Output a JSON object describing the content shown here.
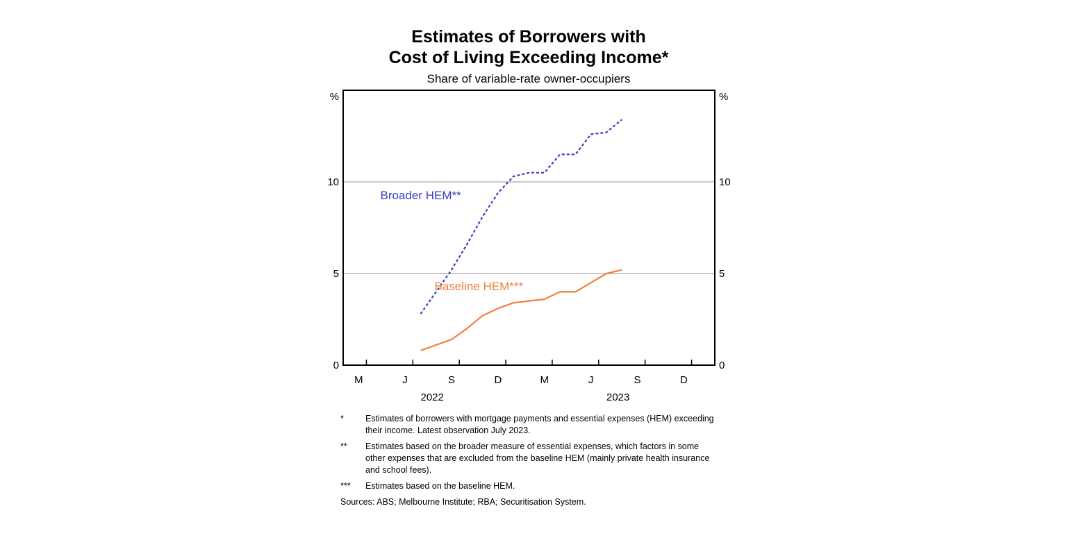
{
  "chart_data": {
    "type": "line",
    "title_lines": [
      "Estimates of Borrowers with",
      "Cost of Living Exceeding Income*"
    ],
    "subtitle": "Share of variable-rate owner-occupiers",
    "yunit_left": "%",
    "yunit_right": "%",
    "ylim": [
      0,
      15
    ],
    "yticks": [
      0,
      5,
      10
    ],
    "grid": true,
    "x_tick_labels": [
      "M",
      "J",
      "S",
      "D",
      "M",
      "J",
      "S",
      "D"
    ],
    "year_labels": [
      {
        "label": "2022",
        "months": [
          7.5,
          8
        ]
      },
      {
        "label": "2023",
        "months": [
          19.5,
          20
        ]
      }
    ],
    "xlim_months": [
      2,
      26
    ],
    "series": [
      {
        "name": "Broader HEM**",
        "color": "#3d3dbf",
        "style": "dashed",
        "x_months": [
          7,
          8,
          9,
          10,
          11,
          12,
          13,
          14,
          15,
          16,
          17,
          18,
          19,
          20
        ],
        "values": [
          2.8,
          4.0,
          5.2,
          6.6,
          8.1,
          9.4,
          10.3,
          10.5,
          10.5,
          11.5,
          11.5,
          12.6,
          12.7,
          13.4
        ]
      },
      {
        "name": "Baseline HEM***",
        "color": "#f07f3c",
        "style": "solid",
        "x_months": [
          7,
          8,
          9,
          10,
          11,
          12,
          13,
          14,
          15,
          16,
          17,
          18,
          19,
          20
        ],
        "values": [
          0.8,
          1.1,
          1.4,
          2.0,
          2.7,
          3.1,
          3.4,
          3.5,
          3.6,
          4.0,
          4.0,
          4.5,
          5.0,
          5.2
        ]
      }
    ]
  },
  "footnotes": [
    {
      "mark": "*",
      "text": "Estimates of borrowers with mortgage payments and essential expenses (HEM) exceeding their income. Latest observation July 2023."
    },
    {
      "mark": "**",
      "text": "Estimates based on the broader measure of essential expenses, which factors in some other expenses that are excluded from the baseline HEM (mainly private health insurance and school fees)."
    },
    {
      "mark": "***",
      "text": "Estimates based on the baseline HEM."
    }
  ],
  "sources": "Sources: ABS; Melbourne Institute; RBA; Securitisation System."
}
